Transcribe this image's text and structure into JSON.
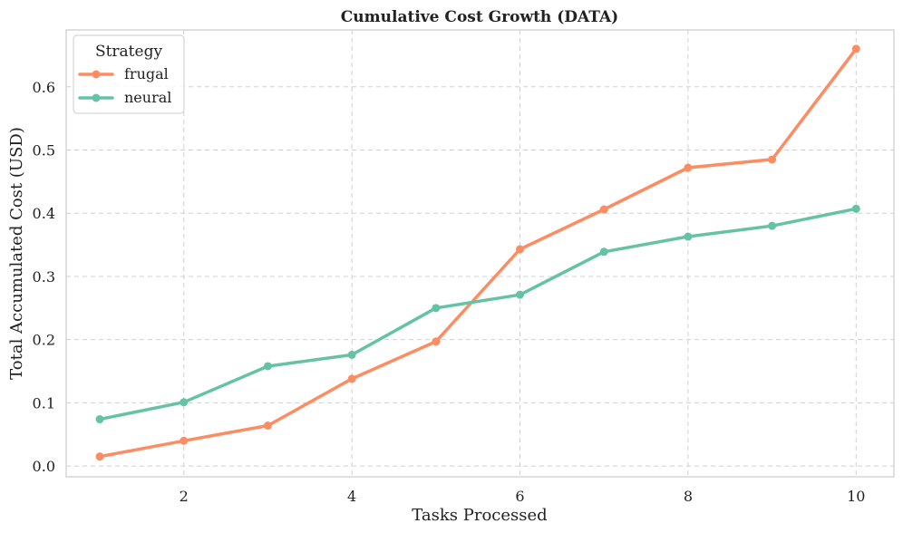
{
  "chart_data": {
    "type": "line",
    "title": "Cumulative Cost Growth (DATA)",
    "xlabel": "Tasks Processed",
    "ylabel": "Total Accumulated Cost (USD)",
    "x": [
      1,
      2,
      3,
      4,
      5,
      6,
      7,
      8,
      9,
      10
    ],
    "xlim": [
      0.6,
      10.45
    ],
    "ylim": [
      -0.017,
      0.69
    ],
    "xticks": [
      2,
      4,
      6,
      8,
      10
    ],
    "xtick_labels": [
      "2",
      "4",
      "6",
      "8",
      "10"
    ],
    "yticks": [
      0.0,
      0.1,
      0.2,
      0.3,
      0.4,
      0.5,
      0.6
    ],
    "ytick_labels": [
      "0.0",
      "0.1",
      "0.2",
      "0.3",
      "0.4",
      "0.5",
      "0.6"
    ],
    "grid": true,
    "legend": {
      "title": "Strategy",
      "placement": "top-left"
    },
    "series": [
      {
        "name": "frugal",
        "color": "#fc8d62",
        "values": [
          0.015,
          0.04,
          0.064,
          0.138,
          0.197,
          0.343,
          0.406,
          0.472,
          0.485,
          0.66
        ]
      },
      {
        "name": "neural",
        "color": "#66c2a5",
        "values": [
          0.074,
          0.101,
          0.158,
          0.176,
          0.25,
          0.271,
          0.339,
          0.363,
          0.38,
          0.407
        ]
      }
    ]
  }
}
